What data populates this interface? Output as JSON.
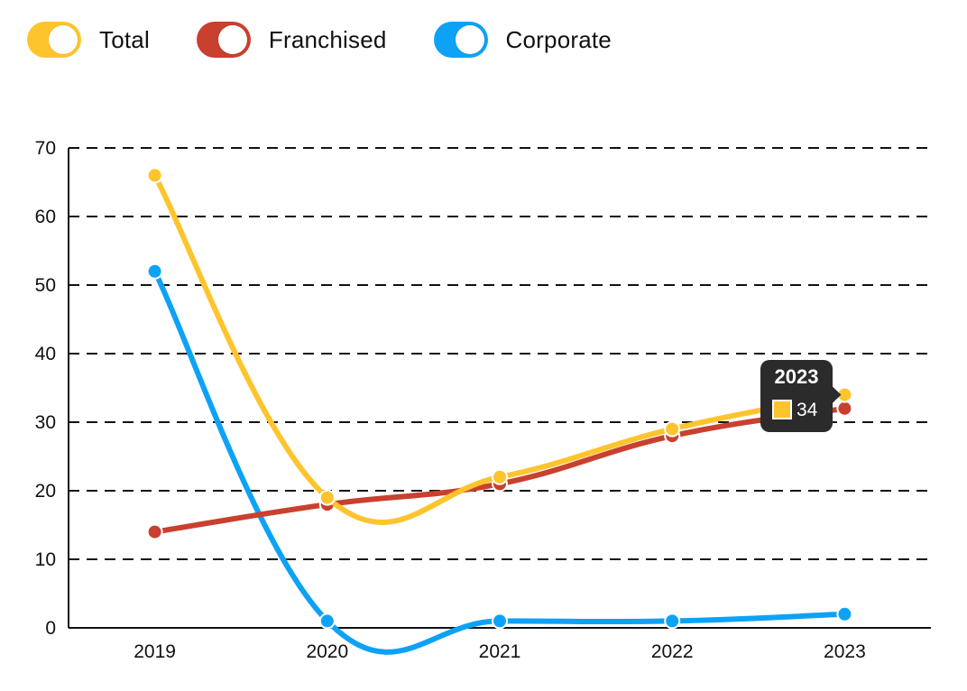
{
  "legend": {
    "items": [
      {
        "label": "Total",
        "color": "#FDC42D"
      },
      {
        "label": "Franchised",
        "color": "#C9402F"
      },
      {
        "label": "Corporate",
        "color": "#0DA2F6"
      }
    ]
  },
  "tooltip": {
    "title": "2023",
    "value": "34",
    "series": "Total"
  },
  "chart_data": {
    "type": "line",
    "categories": [
      "2019",
      "2020",
      "2021",
      "2022",
      "2023"
    ],
    "series": [
      {
        "name": "Total",
        "color": "#FDC42D",
        "values": [
          66,
          19,
          22,
          29,
          34
        ]
      },
      {
        "name": "Franchised",
        "color": "#C9402F",
        "values": [
          14,
          18,
          21,
          28,
          32
        ]
      },
      {
        "name": "Corporate",
        "color": "#0DA2F6",
        "values": [
          52,
          1,
          1,
          1,
          2
        ]
      }
    ],
    "yticks": [
      "0",
      "10",
      "20",
      "30",
      "40",
      "50",
      "60",
      "70"
    ],
    "ylim": [
      0,
      70
    ],
    "grid": true,
    "grid_style": "dashed",
    "legend_position": "top-left",
    "smooth": true
  }
}
